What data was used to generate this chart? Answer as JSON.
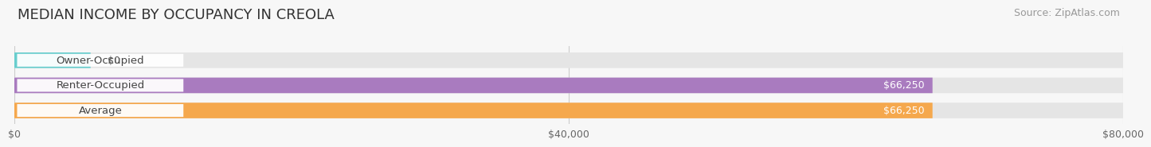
{
  "title": "MEDIAN INCOME BY OCCUPANCY IN CREOLA",
  "source": "Source: ZipAtlas.com",
  "categories": [
    "Owner-Occupied",
    "Renter-Occupied",
    "Average"
  ],
  "values": [
    0,
    66250,
    66250
  ],
  "bar_colors": [
    "#69cece",
    "#a97bbf",
    "#f5a84d"
  ],
  "value_labels": [
    "$0",
    "$66,250",
    "$66,250"
  ],
  "xlim": [
    0,
    80000
  ],
  "xticks": [
    0,
    40000,
    80000
  ],
  "xtick_labels": [
    "$0",
    "$40,000",
    "$80,000"
  ],
  "background_color": "#f7f7f7",
  "bar_background_color": "#e5e5e5",
  "title_fontsize": 13,
  "source_fontsize": 9,
  "label_fontsize": 9.5,
  "value_fontsize": 9,
  "tick_fontsize": 9,
  "bar_height": 0.62,
  "owner_bar_value": 5500
}
